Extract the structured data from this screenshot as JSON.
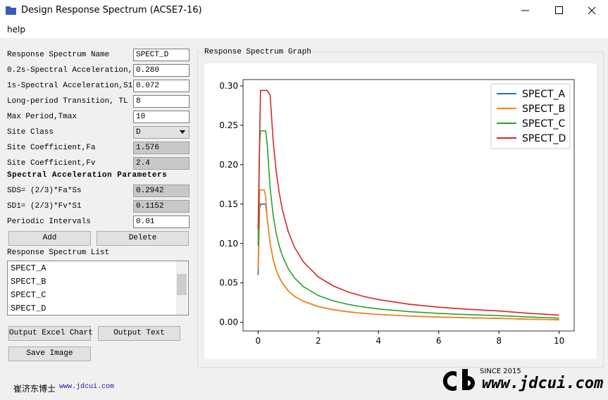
{
  "window": {
    "title": "Design Response Spectrum (ACSE7-16)",
    "menu": [
      "help"
    ]
  },
  "form": {
    "fields": [
      {
        "label": "Response Spectrum Name",
        "value": "SPECT_D"
      },
      {
        "label": "0.2s-Spectral Acceleration,Ss",
        "value": "0.280"
      },
      {
        "label": "1s-Spectral Acceleration,S1",
        "value": "0.072"
      },
      {
        "label": "Long-period Transition, TL",
        "value": "8"
      },
      {
        "label": "Max Period,Tmax",
        "value": "10"
      },
      {
        "label": "Site Class",
        "value": "D"
      },
      {
        "label": "Site Coefficient,Fa",
        "value": "1.576"
      },
      {
        "label": "Site Coefficient,Fv",
        "value": "2.4"
      }
    ],
    "section": "Spectral Acceleration Parameters",
    "parameters": [
      {
        "label": "SDS= (2/3)*Fa*Ss",
        "value": "0.2942"
      },
      {
        "label": "SD1= (2/3)*Fv*S1",
        "value": "0.1152"
      },
      {
        "label": "Periodic Intervals",
        "value": "0.01"
      }
    ],
    "buttons": [
      "Add",
      "Delete"
    ],
    "list_label": "Response Spectrum List",
    "list": [
      "SPECT_A",
      "SPECT_B",
      "SPECT_C",
      "SPECT_D"
    ],
    "output_buttons": [
      "Output Excel Chart",
      "Output Text",
      "Save Image"
    ]
  },
  "group_title": "Response Spectrum Graph",
  "chart_data": {
    "type": "line",
    "x": [
      0,
      0.02,
      0.05,
      0.08,
      0.1,
      0.2,
      0.25,
      0.3,
      0.4,
      0.5,
      0.6,
      0.7,
      0.8,
      1,
      1.2,
      1.5,
      2,
      2.5,
      3,
      3.5,
      4,
      5,
      6,
      7,
      8,
      9,
      10
    ],
    "series": [
      {
        "name": "SPECT_A",
        "color": "#1f77b4",
        "values": [
          0.06,
          0.0938,
          0.1444,
          0.15,
          0.15,
          0.15,
          0.15,
          0.1333,
          0.1,
          0.08,
          0.0667,
          0.0571,
          0.05,
          0.04,
          0.0333,
          0.0267,
          0.02,
          0.016,
          0.0133,
          0.0114,
          0.01,
          0.008,
          0.0067,
          0.0057,
          0.005,
          0.00395,
          0.0032
        ]
      },
      {
        "name": "SPECT_B",
        "color": "#ff7f0e",
        "values": [
          0.0672,
          0.1095,
          0.168,
          0.168,
          0.168,
          0.168,
          0.16,
          0.1333,
          0.1,
          0.08,
          0.0667,
          0.0571,
          0.05,
          0.04,
          0.0333,
          0.0267,
          0.02,
          0.016,
          0.0133,
          0.0114,
          0.01,
          0.008,
          0.0067,
          0.0057,
          0.005,
          0.00395,
          0.0032
        ]
      },
      {
        "name": "SPECT_C",
        "color": "#2ca02c",
        "values": [
          0.0972,
          0.1493,
          0.2274,
          0.243,
          0.243,
          0.243,
          0.243,
          0.2267,
          0.17,
          0.136,
          0.1133,
          0.0971,
          0.085,
          0.068,
          0.0567,
          0.0453,
          0.034,
          0.0272,
          0.0227,
          0.0194,
          0.017,
          0.0136,
          0.0113,
          0.0097,
          0.0085,
          0.0067,
          0.0054
        ]
      },
      {
        "name": "SPECT_D",
        "color": "#d62728",
        "values": [
          0.1177,
          0.1628,
          0.2304,
          0.2942,
          0.2942,
          0.2942,
          0.2942,
          0.2942,
          0.288,
          0.2304,
          0.192,
          0.1646,
          0.144,
          0.1152,
          0.096,
          0.0768,
          0.0576,
          0.0461,
          0.0384,
          0.0329,
          0.0288,
          0.023,
          0.0192,
          0.0165,
          0.0144,
          0.0114,
          0.0092
        ]
      }
    ],
    "xlim": [
      -0.5,
      10.5
    ],
    "xticks": [
      0,
      2,
      4,
      6,
      8,
      10
    ],
    "ylim": [
      -0.011,
      0.308
    ],
    "yticks": [
      {
        "value": 0,
        "label": "0.00"
      },
      0.05,
      {
        "value": 0.1,
        "label": "0.10"
      },
      0.15,
      {
        "value": 0.2,
        "label": "0.20"
      },
      0.25,
      {
        "value": 0.3,
        "label": "0.30"
      }
    ],
    "legend": "upper right"
  },
  "footer": {
    "author": "崔济东博士",
    "site": "www.jdcui.com",
    "logo_since": "SINCE 2015",
    "logo_site": "www.jdcui.com"
  }
}
